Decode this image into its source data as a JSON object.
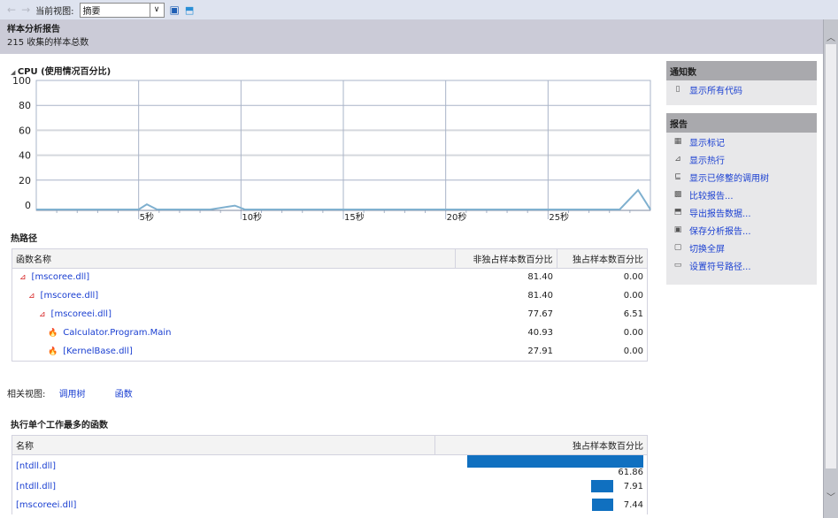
{
  "toolbar": {
    "view_label": "当前视图:",
    "view_value": "摘要"
  },
  "header": {
    "title": "样本分析报告",
    "subtitle": "215 收集的样本总数"
  },
  "cpu": {
    "title": "CPU (使用情况百分比)"
  },
  "chart_data": {
    "type": "line",
    "title": "CPU (使用情况百分比)",
    "ylim": [
      0,
      100
    ],
    "yticks": [
      "100",
      "80",
      "60",
      "40",
      "20",
      "0"
    ],
    "xticks": [
      "5秒",
      "10秒",
      "15秒",
      "20秒",
      "25秒"
    ],
    "xlim": [
      0,
      30
    ],
    "x": [
      0,
      5,
      5.4,
      5.9,
      8.5,
      9.7,
      10.2,
      28.5,
      29.4,
      30
    ],
    "y": [
      0,
      0,
      4,
      0,
      0,
      3,
      0,
      0,
      15,
      0
    ]
  },
  "hotpath": {
    "title": "热路径",
    "headers": [
      "函数名称",
      "非独占样本数百分比",
      "独占样本数百分比"
    ],
    "rows": [
      {
        "name": "[mscoree.dll]",
        "incl": "81.40",
        "excl": "0.00"
      },
      {
        "name": "[mscoree.dll]",
        "incl": "81.40",
        "excl": "0.00"
      },
      {
        "name": "[mscoreei.dll]",
        "incl": "77.67",
        "excl": "6.51"
      },
      {
        "name": "Calculator.Program.Main",
        "incl": "40.93",
        "excl": "0.00"
      },
      {
        "name": "[KernelBase.dll]",
        "incl": "27.91",
        "excl": "0.00"
      }
    ]
  },
  "related": {
    "label": "相关视图:",
    "links": [
      "调用树",
      "函数"
    ]
  },
  "topfuncs": {
    "title": "执行单个工作最多的函数",
    "headers": [
      "名称",
      "独占样本数百分比"
    ],
    "rows": [
      {
        "name": "[ntdll.dll]",
        "value": 61.86,
        "label": "61.86"
      },
      {
        "name": "[ntdll.dll]",
        "value": 7.91,
        "label": "7.91"
      },
      {
        "name": "[mscoreei.dll]",
        "value": 7.44,
        "label": "7.44"
      }
    ],
    "bar_color": "#1070c0"
  },
  "notifications": {
    "title": "通知数",
    "items": [
      "显示所有代码"
    ]
  },
  "reports": {
    "title": "报告",
    "items": [
      "显示标记",
      "显示热行",
      "显示已修整的调用树",
      "比较报告...",
      "导出报告数据...",
      "保存分析报告...",
      "切换全屏",
      "设置符号路径..."
    ]
  }
}
